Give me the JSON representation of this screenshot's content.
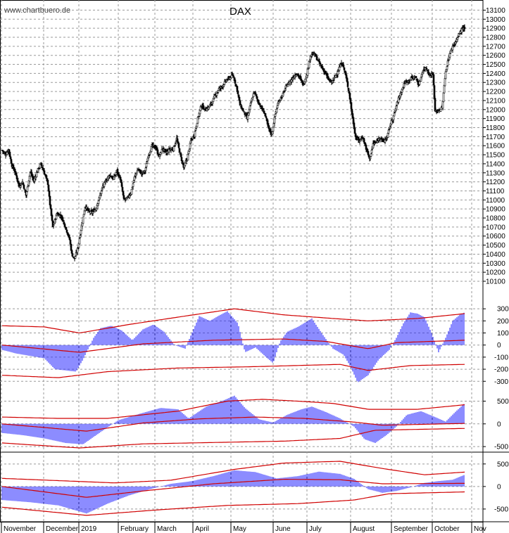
{
  "header": {
    "source": "www.chartbuero.de",
    "title": "DAX"
  },
  "chart_data": [
    {
      "type": "candlestick",
      "title": "DAX",
      "ylim": [
        10100,
        13150
      ],
      "yticks": [
        10100,
        10200,
        10300,
        10400,
        10500,
        10600,
        10700,
        10800,
        10900,
        11000,
        11100,
        11200,
        11300,
        11400,
        11500,
        11600,
        11700,
        11800,
        11900,
        12000,
        12100,
        12200,
        12300,
        12400,
        12500,
        12600,
        12700,
        12800,
        12900,
        13000,
        13100
      ],
      "grid": true,
      "x_months": [
        "November",
        "December",
        "2019",
        "February",
        "March",
        "April",
        "May",
        "June",
        "July",
        "August",
        "September",
        "October",
        "Nov"
      ],
      "close_path": [
        [
          0,
          11550
        ],
        [
          5,
          11500
        ],
        [
          9,
          11560
        ],
        [
          14,
          11380
        ],
        [
          19,
          11300
        ],
        [
          24,
          11150
        ],
        [
          29,
          11200
        ],
        [
          34,
          11050
        ],
        [
          40,
          11310
        ],
        [
          45,
          11210
        ],
        [
          50,
          11320
        ],
        [
          55,
          11400
        ],
        [
          60,
          11300
        ],
        [
          65,
          11180
        ],
        [
          68,
          10950
        ],
        [
          72,
          10700
        ],
        [
          78,
          10850
        ],
        [
          84,
          10820
        ],
        [
          90,
          10700
        ],
        [
          96,
          10560
        ],
        [
          99,
          10400
        ],
        [
          103,
          10350
        ],
        [
          108,
          10480
        ],
        [
          113,
          10720
        ],
        [
          118,
          10930
        ],
        [
          123,
          10870
        ],
        [
          128,
          10860
        ],
        [
          133,
          10900
        ],
        [
          138,
          11020
        ],
        [
          143,
          11150
        ],
        [
          148,
          11220
        ],
        [
          153,
          11280
        ],
        [
          158,
          11230
        ],
        [
          163,
          11320
        ],
        [
          168,
          11230
        ],
        [
          173,
          11000
        ],
        [
          178,
          11020
        ],
        [
          183,
          11080
        ],
        [
          188,
          11250
        ],
        [
          193,
          11340
        ],
        [
          198,
          11290
        ],
        [
          203,
          11320
        ],
        [
          208,
          11500
        ],
        [
          213,
          11600
        ],
        [
          218,
          11580
        ],
        [
          223,
          11480
        ],
        [
          228,
          11570
        ],
        [
          233,
          11520
        ],
        [
          238,
          11560
        ],
        [
          243,
          11560
        ],
        [
          248,
          11680
        ],
        [
          253,
          11500
        ],
        [
          258,
          11360
        ],
        [
          263,
          11460
        ],
        [
          268,
          11650
        ],
        [
          273,
          11720
        ],
        [
          278,
          11900
        ],
        [
          283,
          12050
        ],
        [
          288,
          12000
        ],
        [
          293,
          12020
        ],
        [
          298,
          12080
        ],
        [
          303,
          12160
        ],
        [
          308,
          12230
        ],
        [
          313,
          12260
        ],
        [
          318,
          12320
        ],
        [
          323,
          12350
        ],
        [
          328,
          12380
        ],
        [
          333,
          12250
        ],
        [
          338,
          12050
        ],
        [
          343,
          11980
        ],
        [
          348,
          11900
        ],
        [
          353,
          12060
        ],
        [
          358,
          12200
        ],
        [
          363,
          12100
        ],
        [
          368,
          12020
        ],
        [
          373,
          11960
        ],
        [
          378,
          11800
        ],
        [
          383,
          11720
        ],
        [
          388,
          11950
        ],
        [
          393,
          12100
        ],
        [
          398,
          12150
        ],
        [
          403,
          12250
        ],
        [
          408,
          12300
        ],
        [
          413,
          12350
        ],
        [
          418,
          12400
        ],
        [
          423,
          12350
        ],
        [
          428,
          12270
        ],
        [
          433,
          12400
        ],
        [
          438,
          12600
        ],
        [
          443,
          12620
        ],
        [
          448,
          12550
        ],
        [
          453,
          12480
        ],
        [
          458,
          12420
        ],
        [
          463,
          12340
        ],
        [
          468,
          12300
        ],
        [
          473,
          12360
        ],
        [
          478,
          12450
        ],
        [
          483,
          12520
        ],
        [
          488,
          12380
        ],
        [
          493,
          12180
        ],
        [
          497,
          11950
        ],
        [
          502,
          11700
        ],
        [
          507,
          11650
        ],
        [
          512,
          11700
        ],
        [
          517,
          11570
        ],
        [
          522,
          11450
        ],
        [
          527,
          11620
        ],
        [
          532,
          11640
        ],
        [
          537,
          11700
        ],
        [
          542,
          11640
        ],
        [
          547,
          11700
        ],
        [
          552,
          11850
        ],
        [
          557,
          11950
        ],
        [
          562,
          12100
        ],
        [
          567,
          12200
        ],
        [
          572,
          12300
        ],
        [
          577,
          12320
        ],
        [
          582,
          12350
        ],
        [
          587,
          12360
        ],
        [
          592,
          12270
        ],
        [
          597,
          12420
        ],
        [
          602,
          12470
        ],
        [
          607,
          12380
        ],
        [
          612,
          12400
        ],
        [
          615,
          11980
        ],
        [
          620,
          11990
        ],
        [
          625,
          12020
        ],
        [
          630,
          12420
        ],
        [
          635,
          12600
        ],
        [
          640,
          12700
        ],
        [
          645,
          12760
        ],
        [
          650,
          12850
        ],
        [
          654,
          12900
        ],
        [
          657,
          12890
        ]
      ]
    },
    {
      "type": "histogram-with-bands",
      "yticks": [
        300,
        200,
        100,
        0,
        -100,
        -200,
        -300
      ],
      "ylim": [
        -380,
        330
      ],
      "values": [
        [
          0,
          -40
        ],
        [
          20,
          -70
        ],
        [
          40,
          -90
        ],
        [
          60,
          -110
        ],
        [
          75,
          -200
        ],
        [
          90,
          -210
        ],
        [
          105,
          -220
        ],
        [
          115,
          -120
        ],
        [
          130,
          60
        ],
        [
          140,
          140
        ],
        [
          155,
          160
        ],
        [
          170,
          120
        ],
        [
          185,
          40
        ],
        [
          200,
          130
        ],
        [
          215,
          170
        ],
        [
          230,
          110
        ],
        [
          245,
          0
        ],
        [
          260,
          -30
        ],
        [
          280,
          240
        ],
        [
          295,
          200
        ],
        [
          310,
          250
        ],
        [
          320,
          280
        ],
        [
          335,
          180
        ],
        [
          345,
          -60
        ],
        [
          360,
          -20
        ],
        [
          375,
          -100
        ],
        [
          385,
          -150
        ],
        [
          395,
          30
        ],
        [
          405,
          110
        ],
        [
          420,
          150
        ],
        [
          440,
          220
        ],
        [
          455,
          90
        ],
        [
          470,
          -30
        ],
        [
          485,
          -80
        ],
        [
          495,
          -180
        ],
        [
          505,
          -310
        ],
        [
          520,
          -250
        ],
        [
          535,
          -120
        ],
        [
          550,
          -40
        ],
        [
          560,
          60
        ],
        [
          570,
          180
        ],
        [
          580,
          270
        ],
        [
          590,
          260
        ],
        [
          600,
          230
        ],
        [
          610,
          100
        ],
        [
          620,
          -60
        ],
        [
          630,
          60
        ],
        [
          640,
          200
        ],
        [
          650,
          250
        ],
        [
          657,
          270
        ]
      ],
      "bands": {
        "upper": [
          [
            0,
            160
          ],
          [
            60,
            150
          ],
          [
            110,
            100
          ],
          [
            180,
            170
          ],
          [
            260,
            240
          ],
          [
            330,
            300
          ],
          [
            400,
            250
          ],
          [
            470,
            220
          ],
          [
            520,
            200
          ],
          [
            590,
            220
          ],
          [
            657,
            260
          ]
        ],
        "mid": [
          [
            0,
            0
          ],
          [
            110,
            -60
          ],
          [
            200,
            10
          ],
          [
            300,
            40
          ],
          [
            400,
            50
          ],
          [
            460,
            30
          ],
          [
            520,
            -30
          ],
          [
            560,
            20
          ],
          [
            657,
            40
          ]
        ],
        "lower": [
          [
            0,
            -250
          ],
          [
            80,
            -270
          ],
          [
            150,
            -220
          ],
          [
            250,
            -190
          ],
          [
            350,
            -180
          ],
          [
            480,
            -160
          ],
          [
            520,
            -210
          ],
          [
            580,
            -170
          ],
          [
            657,
            -160
          ]
        ]
      }
    },
    {
      "type": "histogram-with-bands",
      "yticks": [
        500,
        0,
        -500
      ],
      "ylim": [
        -560,
        600
      ],
      "values": [
        [
          0,
          -200
        ],
        [
          30,
          -250
        ],
        [
          60,
          -320
        ],
        [
          90,
          -420
        ],
        [
          115,
          -450
        ],
        [
          140,
          -180
        ],
        [
          165,
          80
        ],
        [
          195,
          220
        ],
        [
          225,
          350
        ],
        [
          250,
          320
        ],
        [
          265,
          120
        ],
        [
          290,
          380
        ],
        [
          315,
          520
        ],
        [
          330,
          620
        ],
        [
          345,
          350
        ],
        [
          365,
          100
        ],
        [
          385,
          30
        ],
        [
          405,
          200
        ],
        [
          425,
          320
        ],
        [
          440,
          380
        ],
        [
          460,
          260
        ],
        [
          480,
          120
        ],
        [
          500,
          -60
        ],
        [
          515,
          -340
        ],
        [
          530,
          -420
        ],
        [
          545,
          -260
        ],
        [
          560,
          -60
        ],
        [
          575,
          200
        ],
        [
          595,
          280
        ],
        [
          615,
          150
        ],
        [
          630,
          50
        ],
        [
          645,
          280
        ],
        [
          657,
          450
        ]
      ],
      "bands": {
        "upper": [
          [
            0,
            150
          ],
          [
            80,
            120
          ],
          [
            150,
            120
          ],
          [
            250,
            280
          ],
          [
            320,
            500
          ],
          [
            370,
            540
          ],
          [
            420,
            500
          ],
          [
            470,
            450
          ],
          [
            520,
            320
          ],
          [
            590,
            320
          ],
          [
            657,
            420
          ]
        ],
        "mid": [
          [
            0,
            0
          ],
          [
            120,
            -160
          ],
          [
            200,
            20
          ],
          [
            280,
            110
          ],
          [
            360,
            150
          ],
          [
            430,
            120
          ],
          [
            500,
            40
          ],
          [
            540,
            -30
          ],
          [
            657,
            10
          ]
        ],
        "lower": [
          [
            0,
            -420
          ],
          [
            110,
            -530
          ],
          [
            200,
            -440
          ],
          [
            300,
            -410
          ],
          [
            400,
            -380
          ],
          [
            480,
            -320
          ],
          [
            530,
            -140
          ],
          [
            657,
            -100
          ]
        ]
      }
    },
    {
      "type": "histogram-with-bands",
      "yticks": [
        500,
        0,
        -500
      ],
      "ylim": [
        -720,
        700
      ],
      "values": [
        [
          0,
          -300
        ],
        [
          40,
          -350
        ],
        [
          80,
          -420
        ],
        [
          120,
          -600
        ],
        [
          150,
          -380
        ],
        [
          180,
          -200
        ],
        [
          210,
          -60
        ],
        [
          240,
          60
        ],
        [
          270,
          120
        ],
        [
          300,
          230
        ],
        [
          330,
          360
        ],
        [
          360,
          320
        ],
        [
          390,
          180
        ],
        [
          420,
          230
        ],
        [
          450,
          330
        ],
        [
          480,
          280
        ],
        [
          500,
          170
        ],
        [
          520,
          -60
        ],
        [
          540,
          -140
        ],
        [
          560,
          -100
        ],
        [
          580,
          -20
        ],
        [
          600,
          80
        ],
        [
          620,
          120
        ],
        [
          640,
          150
        ],
        [
          657,
          260
        ]
      ],
      "bands": {
        "upper": [
          [
            0,
            180
          ],
          [
            80,
            130
          ],
          [
            160,
            80
          ],
          [
            240,
            140
          ],
          [
            330,
            380
          ],
          [
            400,
            520
          ],
          [
            480,
            560
          ],
          [
            540,
            400
          ],
          [
            600,
            260
          ],
          [
            657,
            320
          ]
        ],
        "mid": [
          [
            0,
            0
          ],
          [
            120,
            -240
          ],
          [
            200,
            -100
          ],
          [
            300,
            60
          ],
          [
            400,
            160
          ],
          [
            480,
            150
          ],
          [
            540,
            60
          ],
          [
            657,
            70
          ]
        ],
        "lower": [
          [
            0,
            -460
          ],
          [
            120,
            -640
          ],
          [
            220,
            -520
          ],
          [
            320,
            -420
          ],
          [
            420,
            -380
          ],
          [
            500,
            -300
          ],
          [
            550,
            -160
          ],
          [
            657,
            -120
          ]
        ]
      }
    }
  ]
}
